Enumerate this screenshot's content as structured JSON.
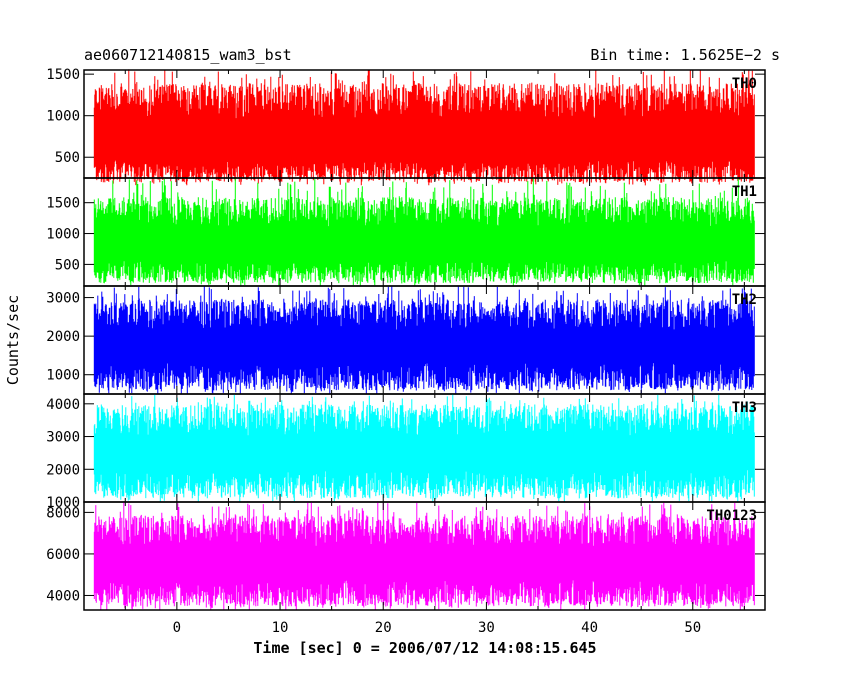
{
  "chart_data": {
    "type": "line",
    "title_left": "ae060712140815_wam3_bst",
    "title_right": "Bin time: 1.5625E−2 s",
    "xlabel": "Time [sec] 0 = 2006/07/12 14:08:15.645",
    "ylabel": "Counts/sec",
    "xlim": [
      -9,
      57
    ],
    "data_x_range": [
      -8,
      56
    ],
    "x_ticks": [
      0,
      10,
      20,
      30,
      40,
      50
    ],
    "grid": false,
    "panels": [
      {
        "name": "TH0",
        "color": "#ff0000",
        "ylim": [
          250,
          1550
        ],
        "y_ticks": [
          500,
          1000,
          1500
        ],
        "low": 160,
        "high": 1560,
        "base_low": 330,
        "base_high": 1180
      },
      {
        "name": "TH1",
        "color": "#00ff00",
        "ylim": [
          150,
          1900
        ],
        "y_ticks": [
          500,
          1000,
          1500
        ],
        "low": 150,
        "high": 1900,
        "base_low": 380,
        "base_high": 1350
      },
      {
        "name": "TH2",
        "color": "#0000ff",
        "ylim": [
          500,
          3300
        ],
        "y_ticks": [
          1000,
          2000,
          3000
        ],
        "low": 500,
        "high": 3300,
        "base_low": 950,
        "base_high": 2550
      },
      {
        "name": "TH3",
        "color": "#00ffff",
        "ylim": [
          1000,
          4300
        ],
        "y_ticks": [
          1000,
          2000,
          3000,
          4000
        ],
        "low": 1000,
        "high": 4300,
        "base_low": 1550,
        "base_high": 3500
      },
      {
        "name": "TH0123",
        "color": "#ff00ff",
        "ylim": [
          3300,
          8500
        ],
        "y_ticks": [
          4000,
          6000,
          8000
        ],
        "low": 3300,
        "high": 8500,
        "base_low": 4100,
        "base_high": 7100
      }
    ]
  }
}
